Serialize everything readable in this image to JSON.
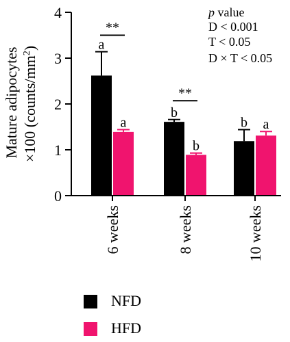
{
  "chart_data": {
    "type": "bar",
    "categories": [
      "6 weeks",
      "8 weeks",
      "10 weeks"
    ],
    "ylabel_line1": "Mature adipocytes",
    "ylabel_line2": "×100 (counts/mm",
    "ylabel_sup": "2",
    "ylabel_close": ")",
    "ylim": [
      0,
      4
    ],
    "yticks": [
      "0",
      "1",
      "2",
      "3",
      "4"
    ],
    "series": [
      {
        "name": "NFD",
        "color": "#000000",
        "values": [
          2.62,
          1.61,
          1.19
        ],
        "errors": [
          0.52,
          0.05,
          0.25
        ],
        "letters": [
          "a",
          "b",
          "b"
        ]
      },
      {
        "name": "HFD",
        "color": "#f0146e",
        "values": [
          1.39,
          0.89,
          1.31
        ],
        "errors": [
          0.05,
          0.04,
          0.09
        ],
        "letters": [
          "a",
          "b",
          "a"
        ]
      }
    ],
    "significance": [
      {
        "group": 0,
        "label": "**",
        "y": 3.5
      },
      {
        "group": 1,
        "label": "**",
        "y": 2.07
      }
    ],
    "stats_box": {
      "heading_italic": "p",
      "heading_rest": " value",
      "lines": [
        "D < 0.001",
        "T < 0.05",
        "D × T < 0.05"
      ]
    },
    "legend_position": "bottom-left"
  }
}
